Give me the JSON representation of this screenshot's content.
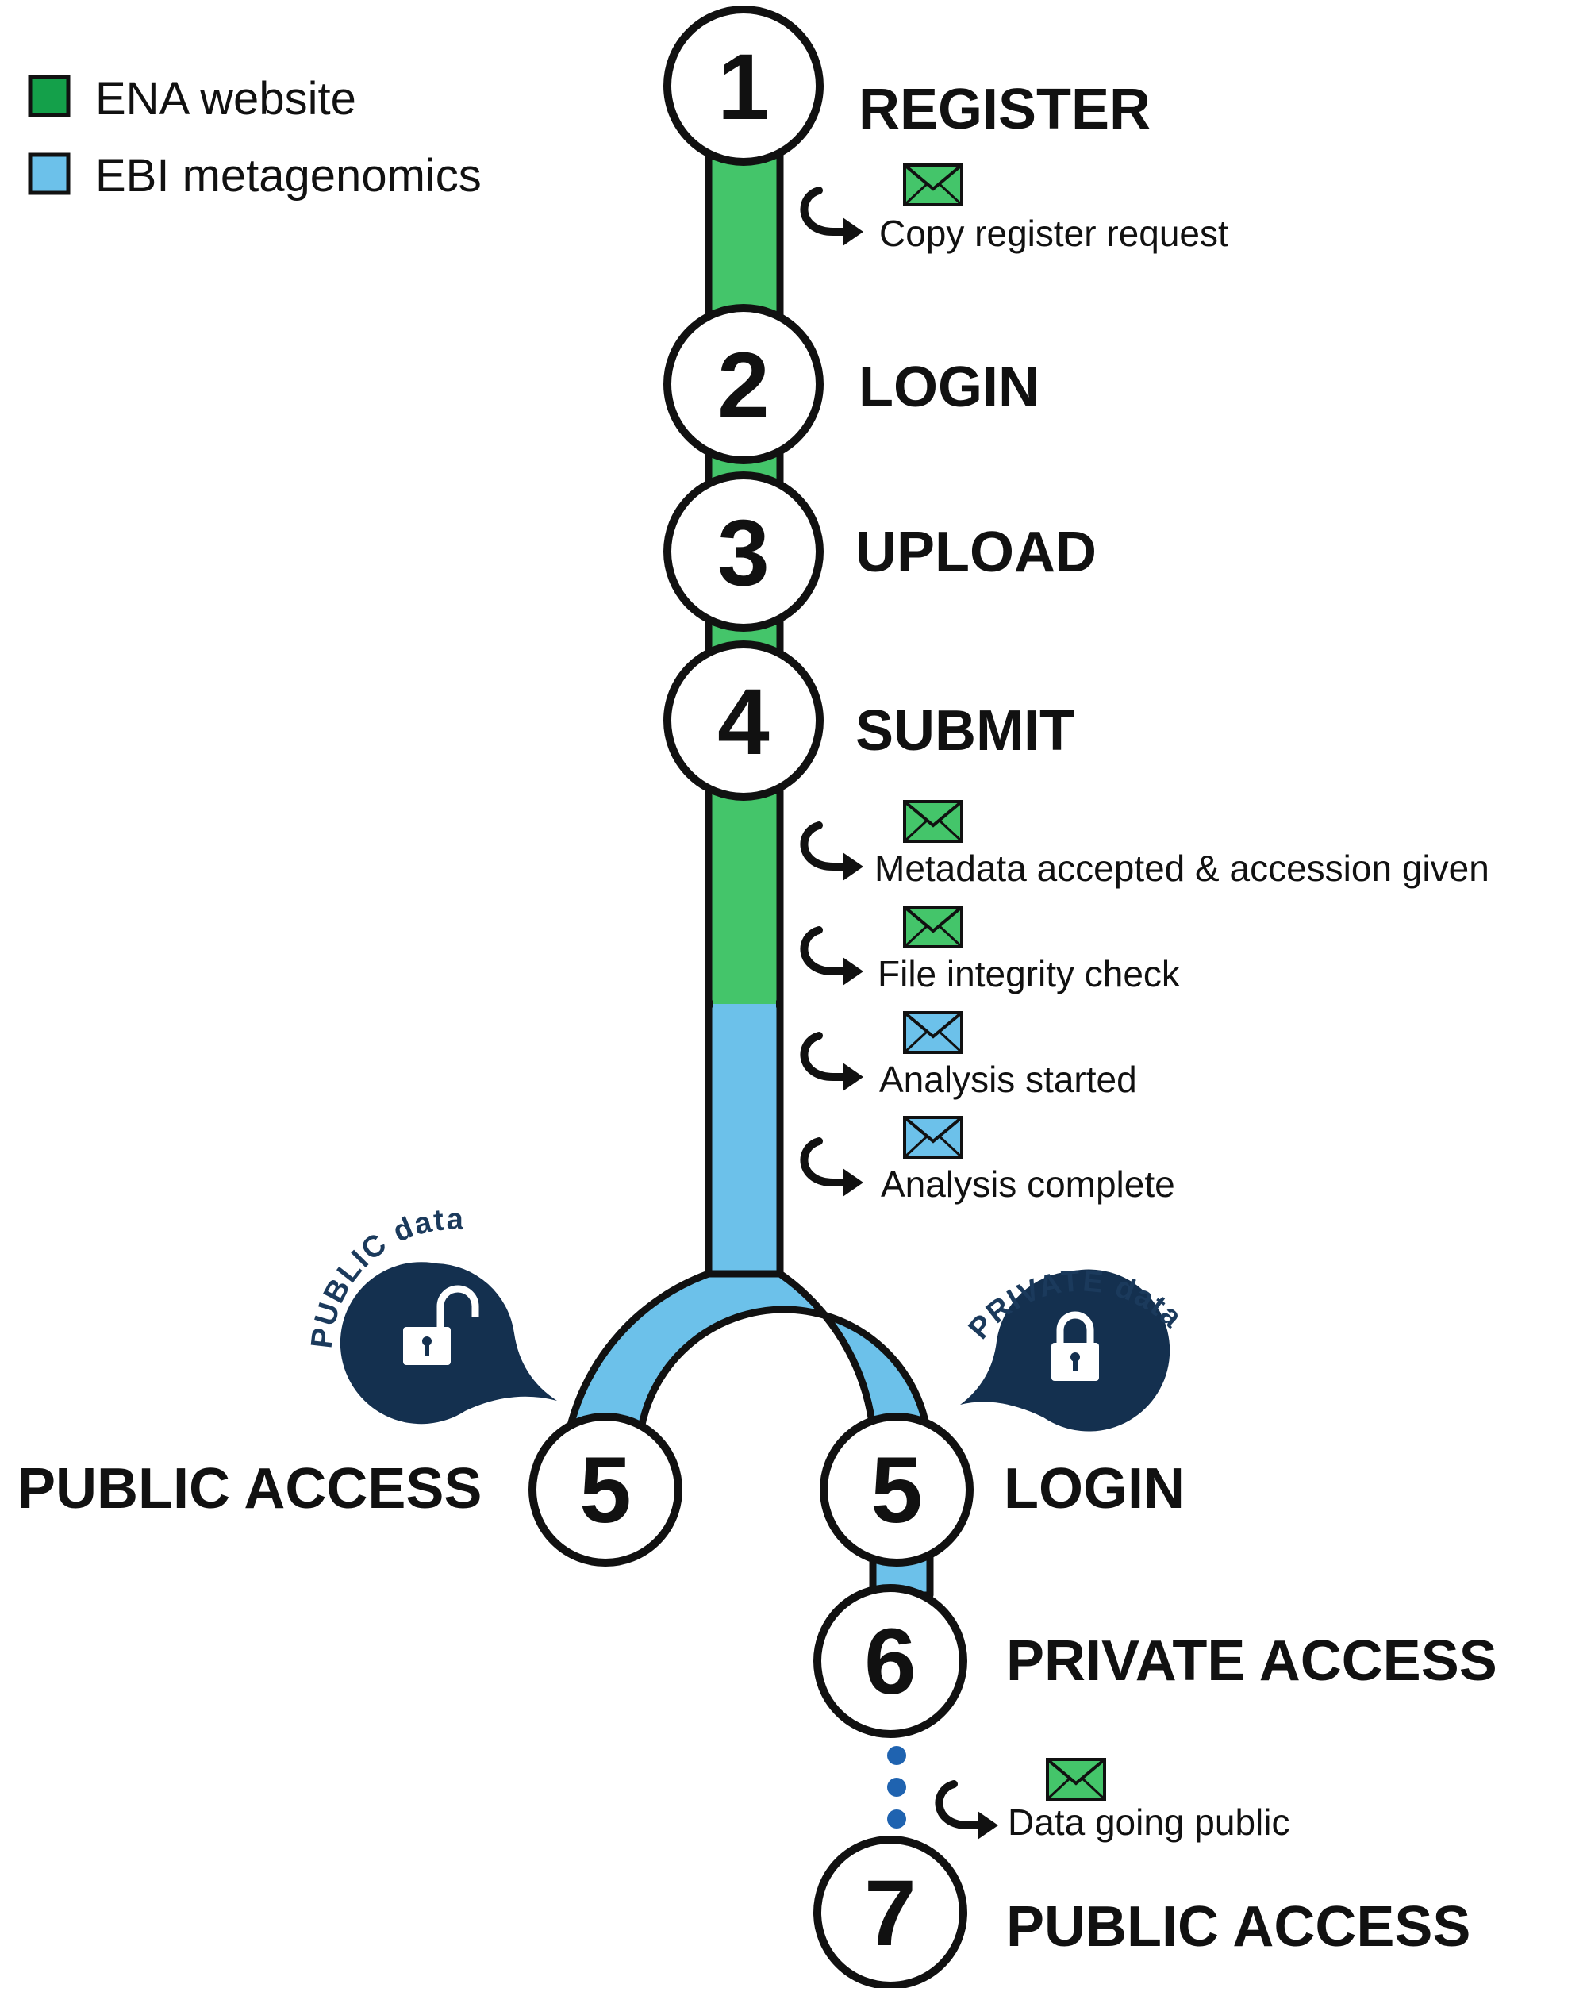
{
  "colors": {
    "ena": "#44c56a",
    "ena_legend": "#14a04a",
    "ebi": "#6cc1ea",
    "outline": "#111111",
    "lock_bubble": "#14304f",
    "dots": "#1f63b0"
  },
  "legend": [
    {
      "label": "ENA website",
      "color_key": "ena_legend"
    },
    {
      "label": "EBI metagenomics",
      "color_key": "ebi"
    }
  ],
  "steps": {
    "s1": {
      "number": "1",
      "label": "REGISTER"
    },
    "s2": {
      "number": "2",
      "label": "LOGIN"
    },
    "s3": {
      "number": "3",
      "label": "UPLOAD"
    },
    "s4": {
      "number": "4",
      "label": "SUBMIT"
    },
    "s5_public": {
      "number": "5",
      "label": "PUBLIC ACCESS"
    },
    "s5_login": {
      "number": "5",
      "label": "LOGIN"
    },
    "s6": {
      "number": "6",
      "label": "PRIVATE ACCESS"
    },
    "s7": {
      "number": "7",
      "label": "PUBLIC ACCESS"
    }
  },
  "notifications": [
    {
      "text": "Copy register request",
      "icon": "envelope-icon",
      "color_key": "ena"
    },
    {
      "text": "Metadata accepted & accession given",
      "icon": "envelope-icon",
      "color_key": "ena"
    },
    {
      "text": "File integrity check",
      "icon": "envelope-icon",
      "color_key": "ena"
    },
    {
      "text": "Analysis started",
      "icon": "envelope-icon",
      "color_key": "ebi"
    },
    {
      "text": "Analysis complete",
      "icon": "envelope-icon",
      "color_key": "ebi"
    },
    {
      "text": "Data going public",
      "icon": "envelope-icon",
      "color_key": "ena"
    }
  ],
  "access_badges": {
    "public": {
      "text": "PUBLIC data",
      "icon": "unlocked-padlock-icon"
    },
    "private": {
      "text": "PRIVATE data",
      "icon": "locked-padlock-icon"
    }
  }
}
